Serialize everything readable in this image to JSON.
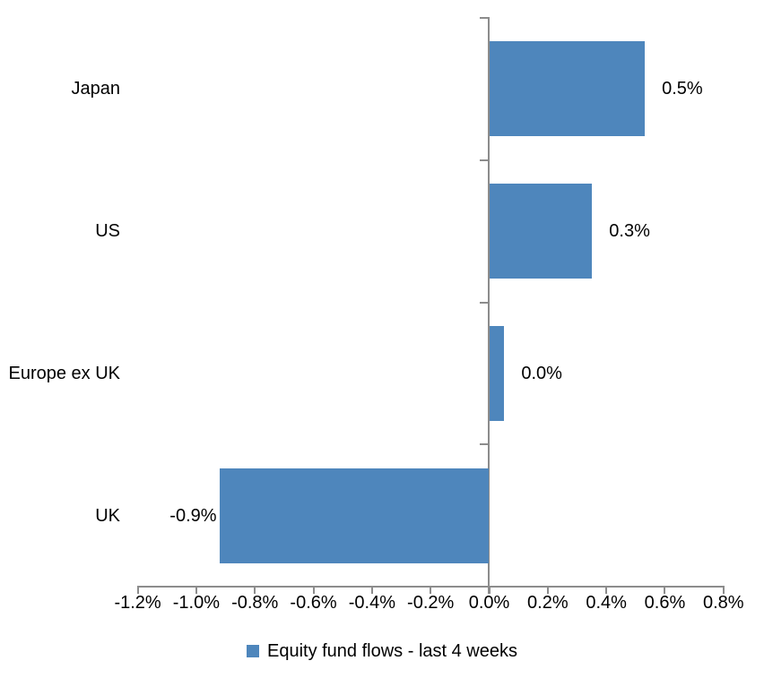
{
  "chart_data": {
    "type": "bar",
    "orientation": "horizontal",
    "title": "",
    "xlabel": "",
    "ylabel": "",
    "categories": [
      "Japan",
      "US",
      "Europe ex UK",
      "UK"
    ],
    "values": [
      0.5,
      0.3,
      0.0,
      -0.9
    ],
    "bar_lengths_pct": [
      0.53,
      0.35,
      0.05,
      -0.92
    ],
    "data_labels": [
      "0.5%",
      "0.3%",
      "0.0%",
      "-0.9%"
    ],
    "x_tick_values": [
      -1.2,
      -1.0,
      -0.8,
      -0.6,
      -0.4,
      -0.2,
      0.0,
      0.2,
      0.4,
      0.6,
      0.8
    ],
    "x_tick_labels": [
      "-1.2%",
      "-1.0%",
      "-0.8%",
      "-0.6%",
      "-0.4%",
      "-0.2%",
      "0.0%",
      "0.2%",
      "0.4%",
      "0.6%",
      "0.8%"
    ],
    "xlim": [
      -1.2,
      0.8
    ],
    "grid": false,
    "legend": {
      "position": "bottom",
      "entries": [
        {
          "label": "Equity fund flows - last 4 weeks",
          "swatch": "square"
        }
      ]
    },
    "colors": {
      "bar": "#4E86BC",
      "axis": "#8C8C8C",
      "text": "#000000",
      "background": "#FFFFFF"
    }
  }
}
